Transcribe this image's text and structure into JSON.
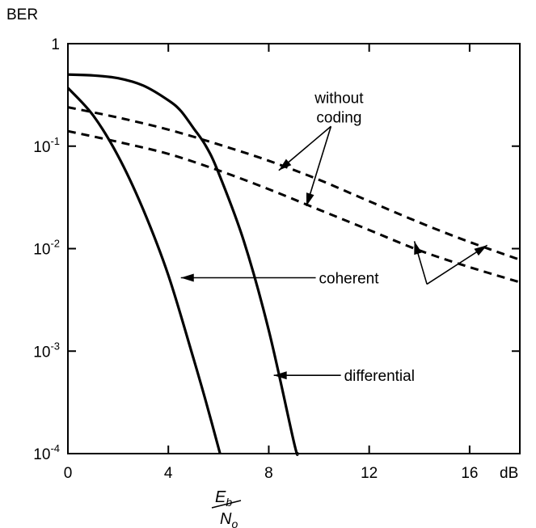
{
  "chart_data": {
    "type": "line",
    "ylabel": "BER",
    "xlabel_numerator": "E",
    "xlabel_numerator_sub": "b",
    "xlabel_denominator": "N",
    "xlabel_denominator_sub": "o",
    "x_unit": "dB",
    "xlim": [
      0,
      18
    ],
    "ylim": [
      0.0001,
      1
    ],
    "y_scale": "log",
    "grid": false,
    "x_ticks": [
      0,
      4,
      8,
      12,
      16
    ],
    "x_tick_labels": [
      "0",
      "4",
      "8",
      "12",
      "16"
    ],
    "y_ticks": [
      {
        "value": 1,
        "base": "1",
        "exp": ""
      },
      {
        "value": 0.1,
        "base": "10",
        "exp": "-1"
      },
      {
        "value": 0.01,
        "base": "10",
        "exp": "-2"
      },
      {
        "value": 0.001,
        "base": "10",
        "exp": "-3"
      },
      {
        "value": 0.0001,
        "base": "10",
        "exp": "-4"
      }
    ],
    "series": [
      {
        "style": "solid",
        "x": [
          0,
          1,
          2,
          3,
          4,
          5,
          5.5,
          6.06
        ],
        "y": [
          0.37,
          0.2,
          0.08,
          0.024,
          0.0055,
          0.00085,
          0.00032,
          0.0001
        ]
      },
      {
        "style": "solid",
        "x": [
          0,
          1,
          2,
          3,
          4,
          4.5,
          5,
          5.5,
          6,
          7,
          8,
          9,
          9.15
        ],
        "y": [
          0.5,
          0.49,
          0.46,
          0.39,
          0.28,
          0.22,
          0.15,
          0.1,
          0.055,
          0.012,
          0.0016,
          0.00013,
          0.0001
        ]
      },
      {
        "style": "dashed",
        "x": [
          0,
          2,
          4,
          6,
          8,
          10,
          12,
          14,
          16,
          18
        ],
        "y": [
          0.24,
          0.19,
          0.145,
          0.104,
          0.072,
          0.047,
          0.029,
          0.018,
          0.0116,
          0.0078
        ]
      },
      {
        "style": "dashed",
        "x": [
          0,
          2,
          4,
          6,
          8,
          10,
          12,
          14,
          16,
          18
        ],
        "y": [
          0.14,
          0.11,
          0.084,
          0.058,
          0.038,
          0.024,
          0.0152,
          0.0096,
          0.0066,
          0.0047
        ]
      }
    ],
    "annotations": [
      {
        "text_lines": [
          "without",
          "coding"
        ],
        "label_x": 10.8,
        "label_y": 0.3,
        "targets": [
          {
            "x": 8.4,
            "y": 0.058
          },
          {
            "x": 9.5,
            "y": 0.026
          }
        ]
      },
      {
        "text_lines": [
          "coherent"
        ],
        "label_x": 10.0,
        "label_y": 0.0052,
        "targets": [
          {
            "x": 4.5,
            "y": 0.0052
          }
        ]
      },
      {
        "text_lines": [
          "differential"
        ],
        "label_x": 11.0,
        "label_y": 0.00058,
        "targets": [
          {
            "x": 8.2,
            "y": 0.00058
          }
        ]
      },
      {
        "text_lines": [],
        "label_x": 14.3,
        "label_y": 0.0045,
        "targets": [
          {
            "x": 13.8,
            "y": 0.0118
          },
          {
            "x": 16.7,
            "y": 0.0108
          }
        ]
      }
    ]
  }
}
